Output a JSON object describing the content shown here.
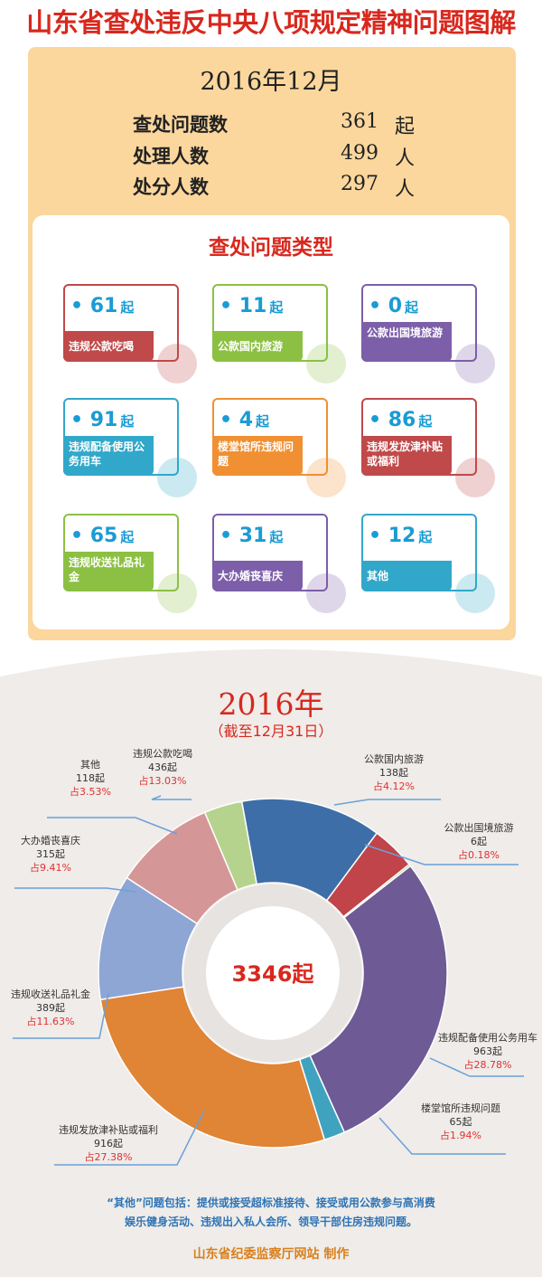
{
  "title": "山东省查处违反中央八项规定精神问题图解",
  "month": {
    "label": "2016年12月",
    "stats": [
      {
        "label": "查处问题数",
        "value": "361",
        "unit": "起"
      },
      {
        "label": "处理人数",
        "value": "499",
        "unit": "人"
      },
      {
        "label": "处分人数",
        "value": "297",
        "unit": "人"
      }
    ],
    "types_title": "查处问题类型",
    "types": [
      {
        "count": "61",
        "unit": "起",
        "name": "违规公款吃喝",
        "color": "#c0494a"
      },
      {
        "count": "11",
        "unit": "起",
        "name": "公款国内旅游",
        "color": "#8cc043"
      },
      {
        "count": "0",
        "unit": "起",
        "name": "公款出国境旅游",
        "color": "#7c5ea9"
      },
      {
        "count": "91",
        "unit": "起",
        "name": "违规配备使用公务用车",
        "color": "#31a8c9"
      },
      {
        "count": "4",
        "unit": "起",
        "name": "楼堂馆所违规问题",
        "color": "#f09032"
      },
      {
        "count": "86",
        "unit": "起",
        "name": "违规发放津补贴或福利",
        "color": "#c0494a"
      },
      {
        "count": "65",
        "unit": "起",
        "name": "违规收送礼品礼金",
        "color": "#8cc043"
      },
      {
        "count": "31",
        "unit": "起",
        "name": "大办婚丧喜庆",
        "color": "#7c5ea9"
      },
      {
        "count": "12",
        "unit": "起",
        "name": "其他",
        "color": "#31a8c9"
      }
    ]
  },
  "chart_data": {
    "type": "pie",
    "title": "2016年",
    "subtitle": "（截至12月31日）",
    "center_label": "3346起",
    "total": 3346,
    "slices": [
      {
        "name": "违规公款吃喝",
        "value": 436,
        "count_label": "436起",
        "pct_label": "占13.03%",
        "color": "#3e6ea8"
      },
      {
        "name": "公款国内旅游",
        "value": 138,
        "count_label": "138起",
        "pct_label": "占4.12%",
        "color": "#c0444a"
      },
      {
        "name": "公款出国境旅游",
        "value": 6,
        "count_label": "6起",
        "pct_label": "占0.18%",
        "color": "#8cc043"
      },
      {
        "name": "违规配备使用公务用车",
        "value": 963,
        "count_label": "963起",
        "pct_label": "占28.78%",
        "color": "#6e5a95"
      },
      {
        "name": "楼堂馆所违规问题",
        "value": 65,
        "count_label": "65起",
        "pct_label": "占1.94%",
        "color": "#3fa3bf"
      },
      {
        "name": "违规发放津补贴或福利",
        "value": 916,
        "count_label": "916起",
        "pct_label": "占27.38%",
        "color": "#e08436"
      },
      {
        "name": "违规收送礼品礼金",
        "value": 389,
        "count_label": "389起",
        "pct_label": "占11.63%",
        "color": "#8ea6d4"
      },
      {
        "name": "大办婚丧喜庆",
        "value": 315,
        "count_label": "315起",
        "pct_label": "占9.41%",
        "color": "#d59697"
      },
      {
        "name": "其他",
        "value": 118,
        "count_label": "118起",
        "pct_label": "占3.53%",
        "color": "#b6d38e"
      }
    ]
  },
  "note": {
    "line1": "“其他”问题包括：提供或接受超标准接待、接受或用公款参与高消费",
    "line2": "娱乐健身活动、违规出入私人会所、领导干部住房违规问题。"
  },
  "credit": "山东省纪委监察厅网站  制作",
  "colors": {
    "accent_red": "#d8281e",
    "panel": "#fbd79d",
    "leader_line": "#6aa0d8"
  }
}
